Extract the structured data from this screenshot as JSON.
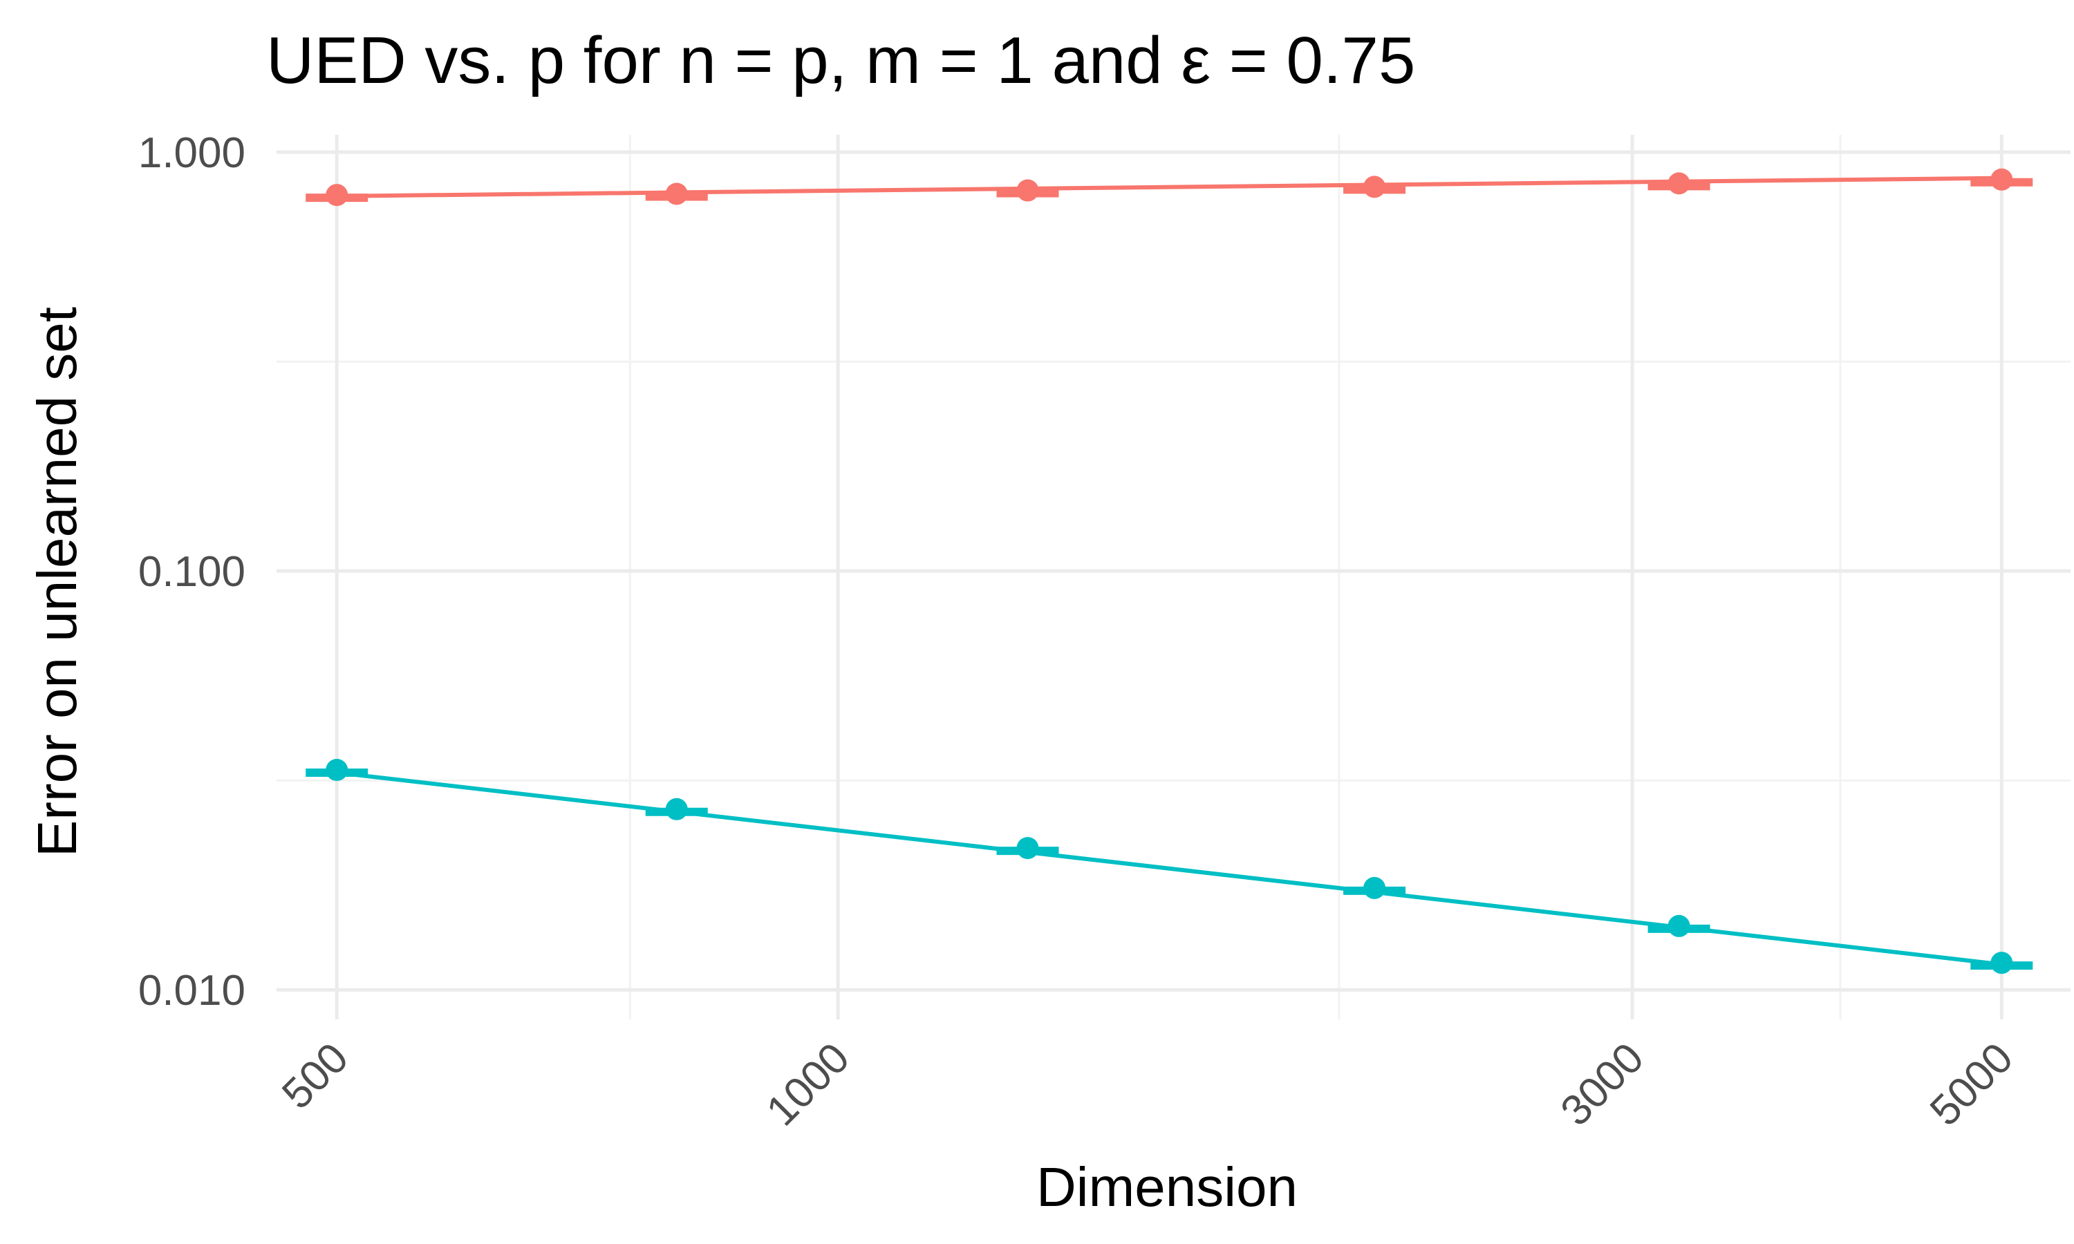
{
  "chart_data": {
    "type": "line",
    "title": "UED vs. p for n = p, m = 1 and  ε =  0.75",
    "xlabel": "Dimension",
    "ylabel": "Error on unlearned set",
    "x_scale": "log10",
    "y_scale": "log10",
    "xlim": [
      460,
      5500
    ],
    "ylim": [
      0.0085,
      1.1
    ],
    "x_ticks": [
      500,
      1000,
      3000,
      5000
    ],
    "x_tick_labels": [
      "500",
      "1000",
      "3000",
      "5000"
    ],
    "x_minor_gridlines": [
      750,
      2000,
      4000
    ],
    "y_ticks": [
      0.01,
      0.1,
      1.0
    ],
    "y_tick_labels": [
      "0.010",
      "0.100",
      "1.000"
    ],
    "y_minor_gridlines": [
      0.0316,
      0.316
    ],
    "x": [
      500,
      800,
      1300,
      2100,
      3200,
      5000
    ],
    "series": [
      {
        "color": "#F8766D",
        "values": [
          0.79,
          0.795,
          0.81,
          0.826,
          0.842,
          0.86
        ],
        "fit": [
          0.785,
          0.867
        ]
      },
      {
        "color": "#00BFC4",
        "values": [
          0.0335,
          0.027,
          0.0218,
          0.0175,
          0.0142,
          0.0116
        ],
        "fit": [
          0.033,
          0.0115
        ]
      }
    ],
    "grid": true,
    "legend": "none"
  }
}
